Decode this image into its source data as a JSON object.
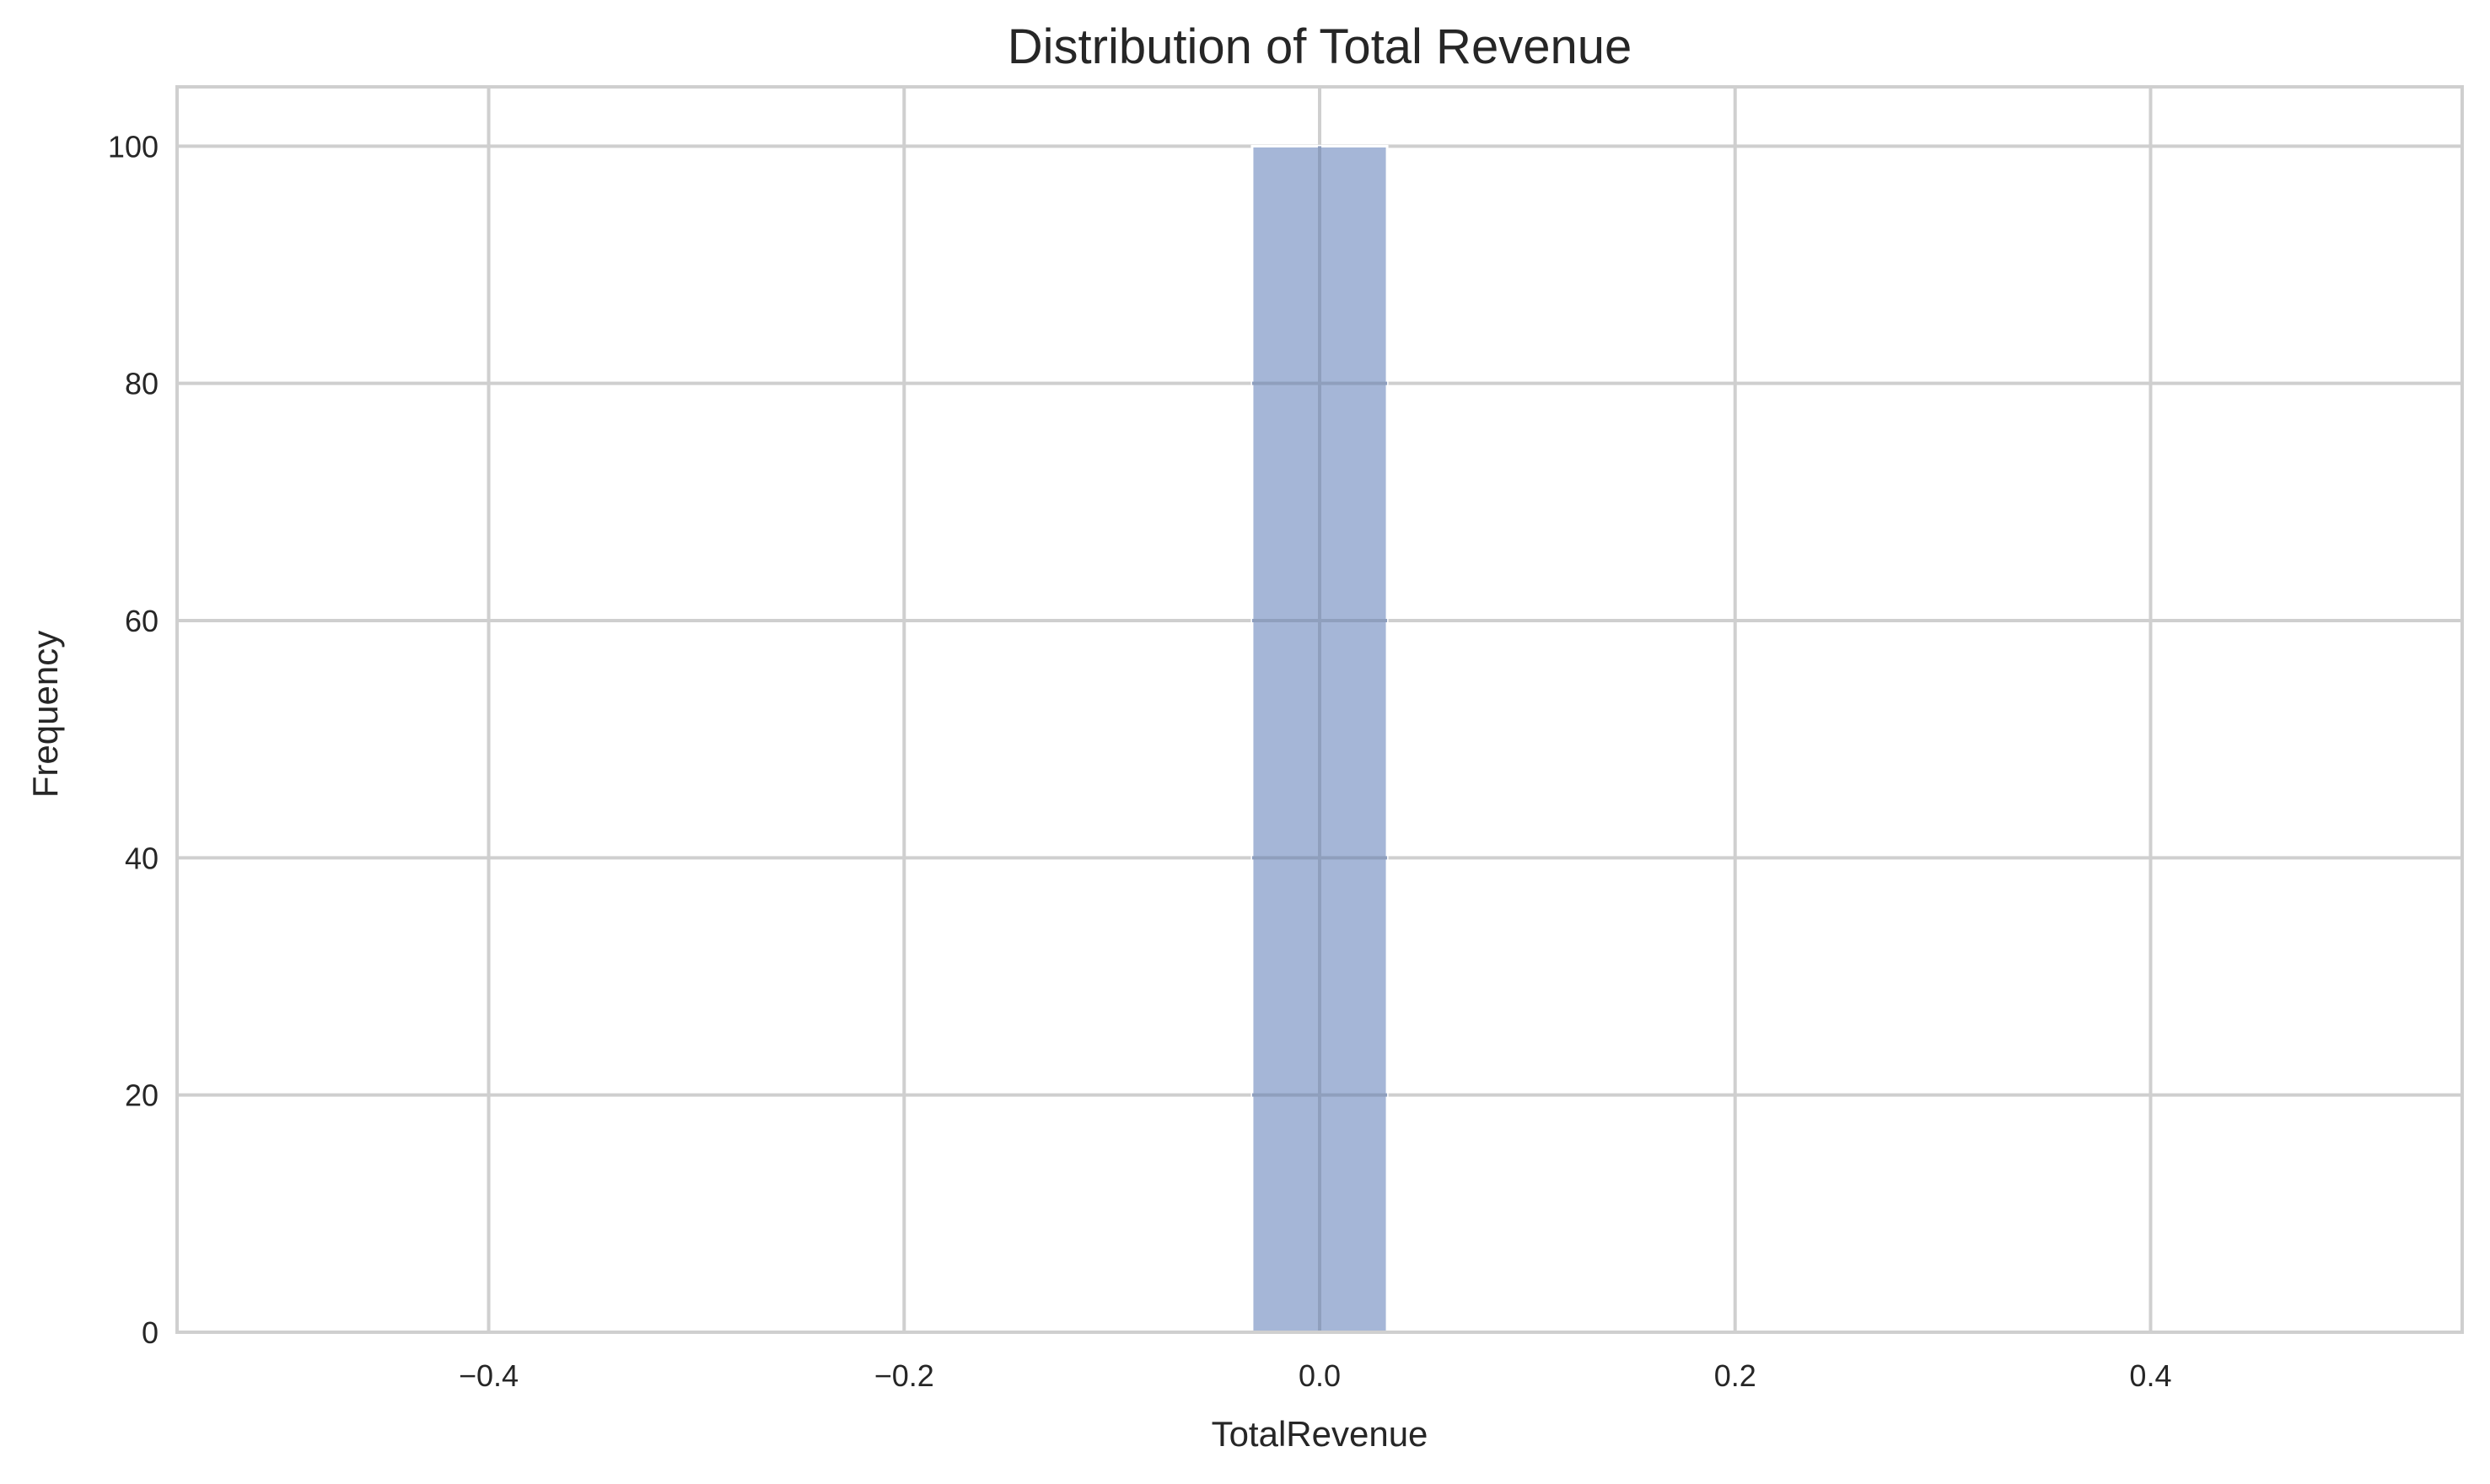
{
  "chart_data": {
    "type": "bar",
    "title": "Distribution of Total Revenue",
    "xlabel": "TotalRevenue",
    "ylabel": "Frequency",
    "xlim": [
      -0.55,
      0.55
    ],
    "ylim": [
      0,
      105
    ],
    "x_ticks": [
      {
        "value": -0.4,
        "label": "−0.4"
      },
      {
        "value": -0.2,
        "label": "−0.2"
      },
      {
        "value": 0.0,
        "label": "0.0"
      },
      {
        "value": 0.2,
        "label": "0.2"
      },
      {
        "value": 0.4,
        "label": "0.4"
      }
    ],
    "y_ticks": [
      {
        "value": 0,
        "label": "0"
      },
      {
        "value": 20,
        "label": "20"
      },
      {
        "value": 40,
        "label": "40"
      },
      {
        "value": 60,
        "label": "60"
      },
      {
        "value": 80,
        "label": "80"
      },
      {
        "value": 100,
        "label": "100"
      }
    ],
    "bins": [
      {
        "x_start": -0.0325,
        "x_end": 0.0325,
        "count": 100
      }
    ],
    "grid": true,
    "bar_color": "#a5b6d7",
    "grid_color": "#cfcfcf"
  }
}
